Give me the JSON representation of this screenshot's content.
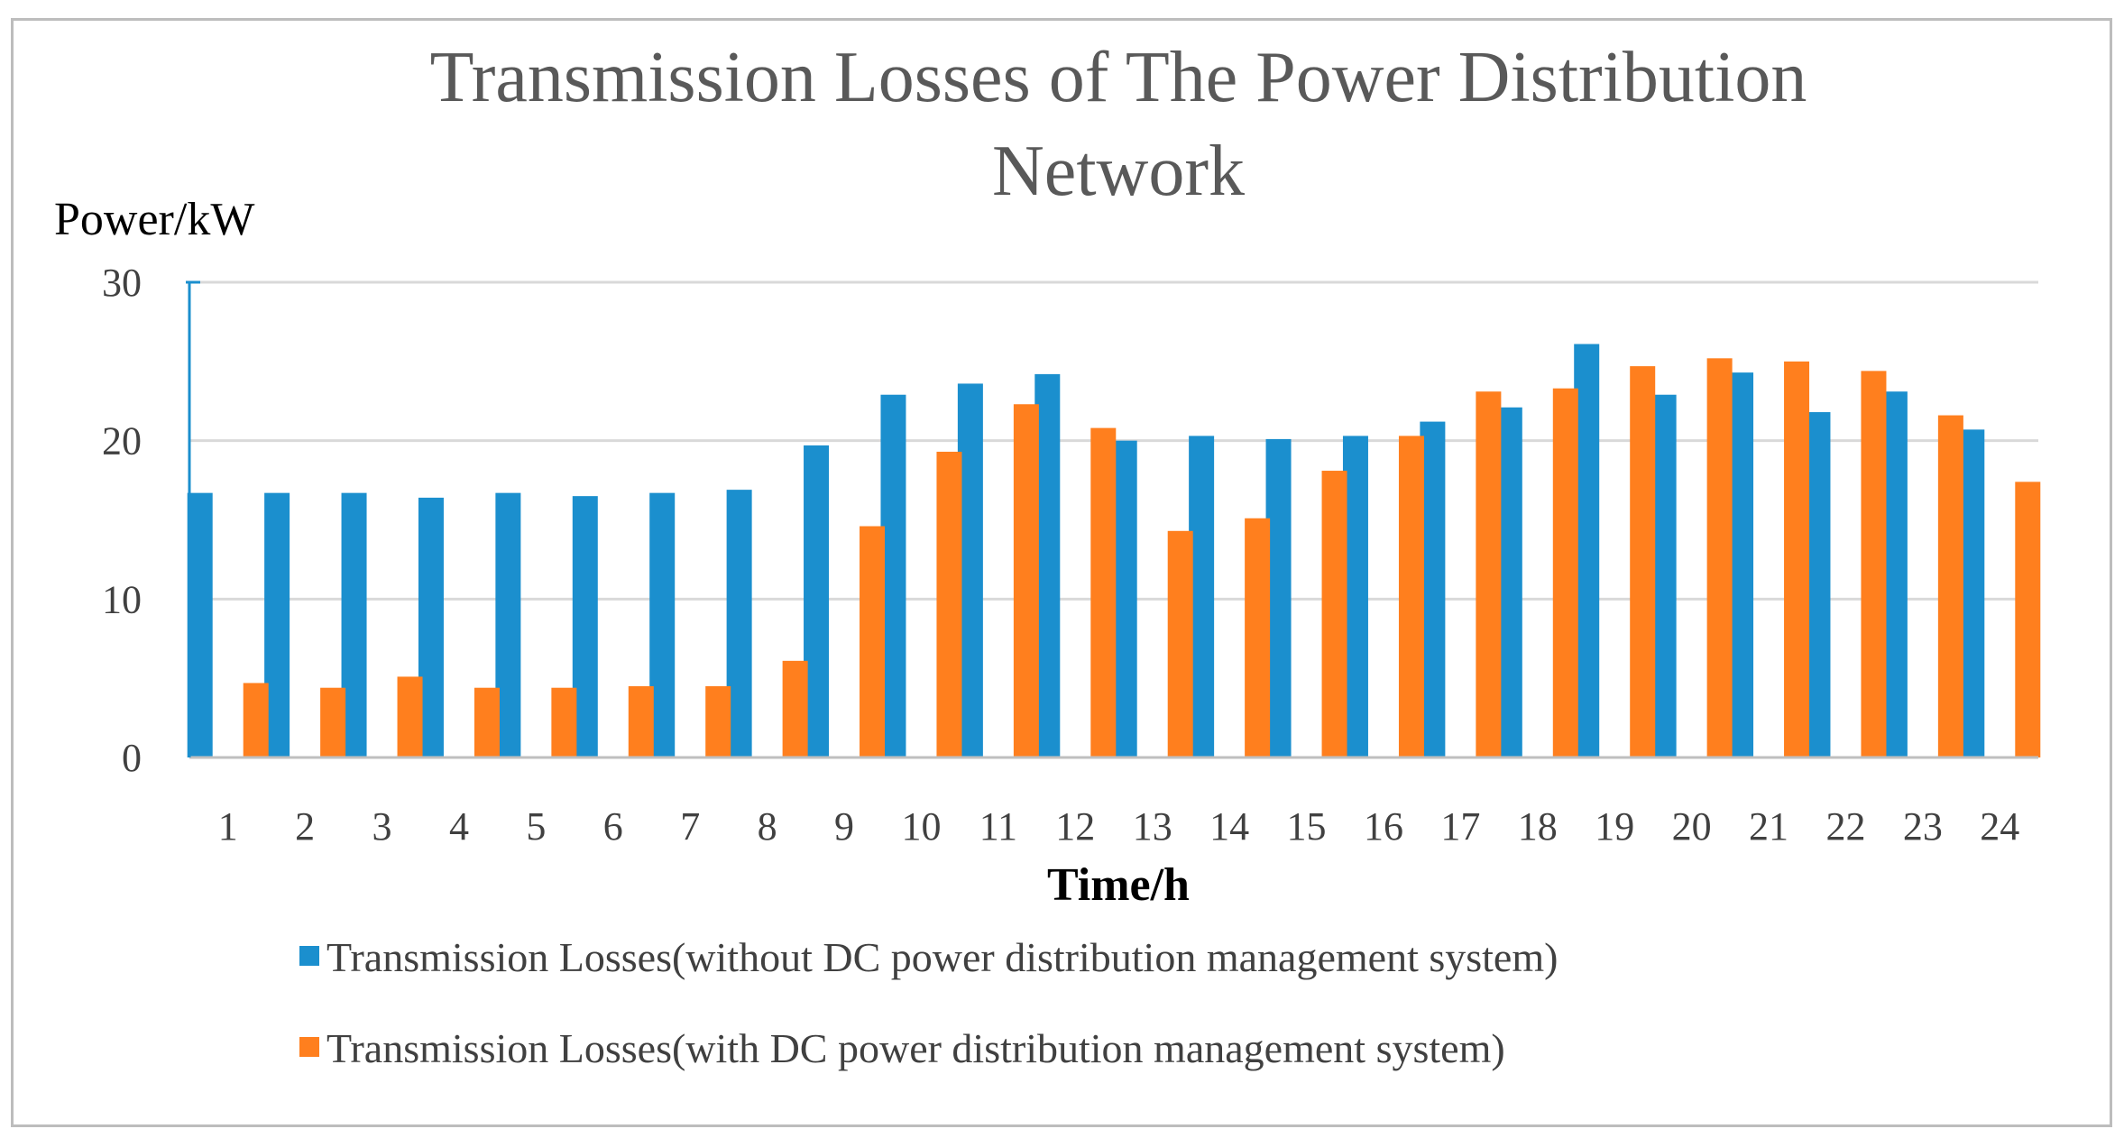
{
  "chart_data": {
    "type": "bar",
    "title_lines": [
      "Transmission Losses of The Power Distribution",
      "Network"
    ],
    "ylabel": "Power/kW",
    "xlabel": "Time/h",
    "ylim": [
      0,
      30
    ],
    "yticks": [
      "0",
      "10",
      "20",
      "30"
    ],
    "grid": true,
    "legend_position": "bottom",
    "categories": [
      "1",
      "2",
      "3",
      "4",
      "5",
      "6",
      "7",
      "8",
      "9",
      "10",
      "11",
      "12",
      "13",
      "14",
      "15",
      "16",
      "17",
      "18",
      "19",
      "20",
      "21",
      "22",
      "23",
      "24"
    ],
    "series": [
      {
        "name": "Transmission Losses(without DC power distribution management system)",
        "color": "#1B8FCE",
        "values": [
          16.7,
          16.7,
          16.7,
          16.4,
          16.7,
          16.5,
          16.7,
          16.9,
          19.7,
          22.9,
          23.6,
          24.2,
          20.0,
          20.3,
          20.1,
          20.3,
          21.2,
          22.1,
          26.1,
          22.9,
          24.3,
          21.8,
          23.1,
          20.7
        ]
      },
      {
        "name": "Transmission Losses(with DC power distribution management system)",
        "color": "#FF7F1E",
        "values": [
          4.7,
          4.4,
          5.1,
          4.4,
          4.4,
          4.5,
          4.5,
          6.1,
          14.6,
          19.3,
          22.3,
          20.8,
          14.3,
          15.1,
          18.1,
          20.3,
          23.1,
          23.3,
          24.7,
          25.2,
          25.0,
          24.4,
          21.6,
          17.4
        ]
      }
    ]
  }
}
